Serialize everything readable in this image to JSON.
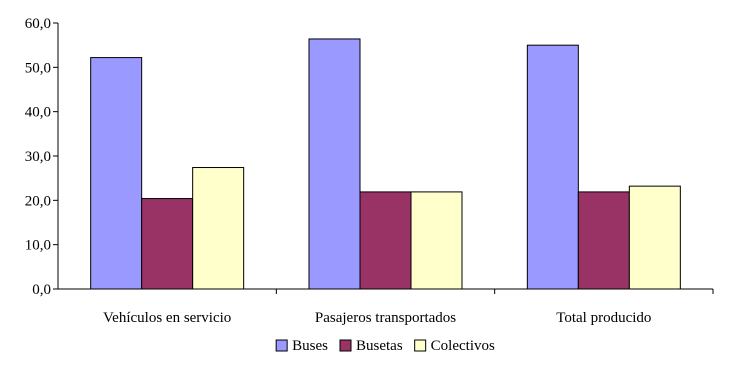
{
  "chart_data": {
    "type": "bar",
    "title": "",
    "xlabel": "",
    "ylabel": "",
    "categories": [
      "Vehículos en servicio",
      "Pasajeros transportados",
      "Total producido"
    ],
    "series": [
      {
        "name": "Buses",
        "values": [
          52.2,
          56.4,
          55.0
        ],
        "color": "#9999FF"
      },
      {
        "name": "Busetas",
        "values": [
          20.4,
          21.9,
          21.9
        ],
        "color": "#993366"
      },
      {
        "name": "Colectivos",
        "values": [
          27.4,
          21.9,
          23.2
        ],
        "color": "#FFFFCC"
      }
    ],
    "ylim": [
      0,
      60
    ],
    "yticks": [
      "0,0",
      "10,0",
      "20,0",
      "30,0",
      "40,0",
      "50,0",
      "60,0"
    ],
    "grid": false,
    "legend_position": "bottom"
  }
}
